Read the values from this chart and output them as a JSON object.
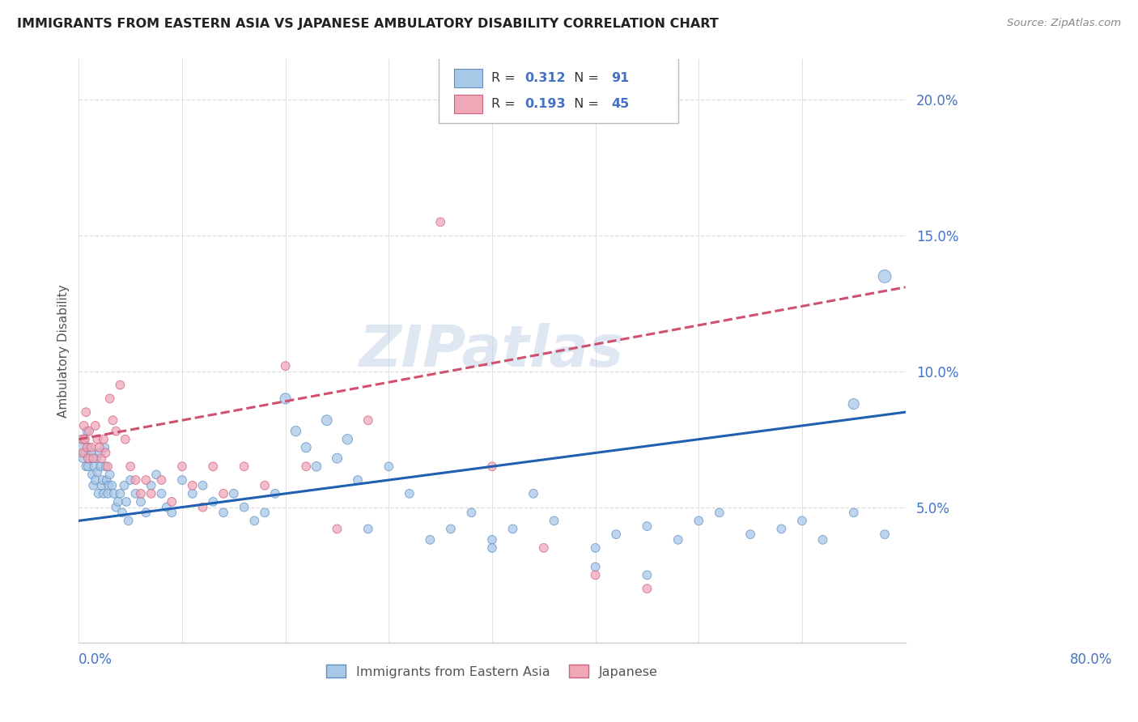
{
  "title": "IMMIGRANTS FROM EASTERN ASIA VS JAPANESE AMBULATORY DISABILITY CORRELATION CHART",
  "source": "Source: ZipAtlas.com",
  "ylabel": "Ambulatory Disability",
  "yticks": [
    0.05,
    0.1,
    0.15,
    0.2
  ],
  "ytick_labels": [
    "5.0%",
    "10.0%",
    "15.0%",
    "20.0%"
  ],
  "xlim": [
    0.0,
    0.8
  ],
  "ylim": [
    0.0,
    0.215
  ],
  "series1_color": "#a8c8e8",
  "series1_edge": "#6090c0",
  "series2_color": "#f0a8b8",
  "series2_edge": "#d06080",
  "trend1_color": "#2060b0",
  "trend2_color": "#d05070",
  "legend_label1": "Immigrants from Eastern Asia",
  "legend_label2": "Japanese",
  "R1": "0.312",
  "N1": "91",
  "R2": "0.193",
  "N2": "45",
  "watermark": "ZIPatlas",
  "blue_scatter_x": [
    0.003,
    0.004,
    0.005,
    0.006,
    0.007,
    0.008,
    0.009,
    0.01,
    0.011,
    0.012,
    0.013,
    0.014,
    0.015,
    0.016,
    0.017,
    0.018,
    0.019,
    0.02,
    0.021,
    0.022,
    0.023,
    0.024,
    0.025,
    0.026,
    0.027,
    0.028,
    0.029,
    0.03,
    0.032,
    0.034,
    0.036,
    0.038,
    0.04,
    0.042,
    0.044,
    0.046,
    0.048,
    0.05,
    0.055,
    0.06,
    0.065,
    0.07,
    0.075,
    0.08,
    0.085,
    0.09,
    0.1,
    0.11,
    0.12,
    0.13,
    0.14,
    0.15,
    0.16,
    0.17,
    0.18,
    0.19,
    0.2,
    0.21,
    0.22,
    0.23,
    0.24,
    0.25,
    0.26,
    0.27,
    0.28,
    0.3,
    0.32,
    0.34,
    0.36,
    0.38,
    0.4,
    0.42,
    0.44,
    0.46,
    0.5,
    0.52,
    0.55,
    0.58,
    0.6,
    0.62,
    0.65,
    0.68,
    0.7,
    0.72,
    0.75,
    0.78,
    0.5,
    0.55,
    0.4,
    0.78,
    0.75
  ],
  "blue_scatter_y": [
    0.072,
    0.068,
    0.075,
    0.07,
    0.065,
    0.078,
    0.065,
    0.072,
    0.068,
    0.07,
    0.062,
    0.058,
    0.065,
    0.06,
    0.068,
    0.063,
    0.055,
    0.07,
    0.065,
    0.058,
    0.06,
    0.055,
    0.072,
    0.065,
    0.06,
    0.055,
    0.058,
    0.062,
    0.058,
    0.055,
    0.05,
    0.052,
    0.055,
    0.048,
    0.058,
    0.052,
    0.045,
    0.06,
    0.055,
    0.052,
    0.048,
    0.058,
    0.062,
    0.055,
    0.05,
    0.048,
    0.06,
    0.055,
    0.058,
    0.052,
    0.048,
    0.055,
    0.05,
    0.045,
    0.048,
    0.055,
    0.09,
    0.078,
    0.072,
    0.065,
    0.082,
    0.068,
    0.075,
    0.06,
    0.042,
    0.065,
    0.055,
    0.038,
    0.042,
    0.048,
    0.038,
    0.042,
    0.055,
    0.045,
    0.035,
    0.04,
    0.043,
    0.038,
    0.045,
    0.048,
    0.04,
    0.042,
    0.045,
    0.038,
    0.048,
    0.04,
    0.028,
    0.025,
    0.035,
    0.135,
    0.088
  ],
  "blue_marker_sizes": [
    150,
    60,
    60,
    60,
    60,
    60,
    60,
    60,
    60,
    60,
    60,
    60,
    60,
    60,
    60,
    60,
    60,
    60,
    60,
    60,
    60,
    60,
    60,
    60,
    60,
    60,
    60,
    60,
    60,
    60,
    60,
    60,
    60,
    60,
    60,
    60,
    60,
    60,
    60,
    60,
    60,
    60,
    60,
    60,
    60,
    60,
    60,
    60,
    60,
    60,
    60,
    60,
    60,
    60,
    60,
    60,
    90,
    80,
    75,
    70,
    85,
    75,
    80,
    60,
    60,
    60,
    60,
    60,
    60,
    60,
    60,
    60,
    60,
    60,
    60,
    60,
    60,
    60,
    60,
    60,
    60,
    60,
    60,
    60,
    60,
    60,
    60,
    60,
    60,
    130,
    90
  ],
  "pink_scatter_x": [
    0.003,
    0.004,
    0.005,
    0.006,
    0.007,
    0.008,
    0.009,
    0.01,
    0.012,
    0.014,
    0.016,
    0.018,
    0.02,
    0.022,
    0.024,
    0.026,
    0.028,
    0.03,
    0.033,
    0.036,
    0.04,
    0.045,
    0.05,
    0.055,
    0.06,
    0.065,
    0.07,
    0.08,
    0.09,
    0.1,
    0.11,
    0.12,
    0.13,
    0.14,
    0.16,
    0.18,
    0.2,
    0.22,
    0.25,
    0.28,
    0.35,
    0.4,
    0.45,
    0.5,
    0.55
  ],
  "pink_scatter_y": [
    0.075,
    0.07,
    0.08,
    0.075,
    0.085,
    0.072,
    0.068,
    0.078,
    0.072,
    0.068,
    0.08,
    0.075,
    0.072,
    0.068,
    0.075,
    0.07,
    0.065,
    0.09,
    0.082,
    0.078,
    0.095,
    0.075,
    0.065,
    0.06,
    0.055,
    0.06,
    0.055,
    0.06,
    0.052,
    0.065,
    0.058,
    0.05,
    0.065,
    0.055,
    0.065,
    0.058,
    0.102,
    0.065,
    0.042,
    0.082,
    0.155,
    0.065,
    0.035,
    0.025,
    0.02
  ],
  "pink_marker_sizes": [
    60,
    60,
    60,
    60,
    60,
    60,
    60,
    60,
    60,
    60,
    60,
    60,
    60,
    60,
    60,
    60,
    60,
    60,
    60,
    60,
    60,
    60,
    60,
    60,
    60,
    60,
    60,
    60,
    60,
    60,
    60,
    60,
    60,
    60,
    60,
    60,
    60,
    60,
    60,
    60,
    60,
    60,
    60,
    60,
    60
  ],
  "grid_color": "#dddddd",
  "background_color": "#ffffff",
  "title_fontsize": 11.5,
  "source_fontsize": 9.5,
  "ytick_fontsize": 12,
  "xtick_fontsize": 12,
  "ylabel_fontsize": 11
}
